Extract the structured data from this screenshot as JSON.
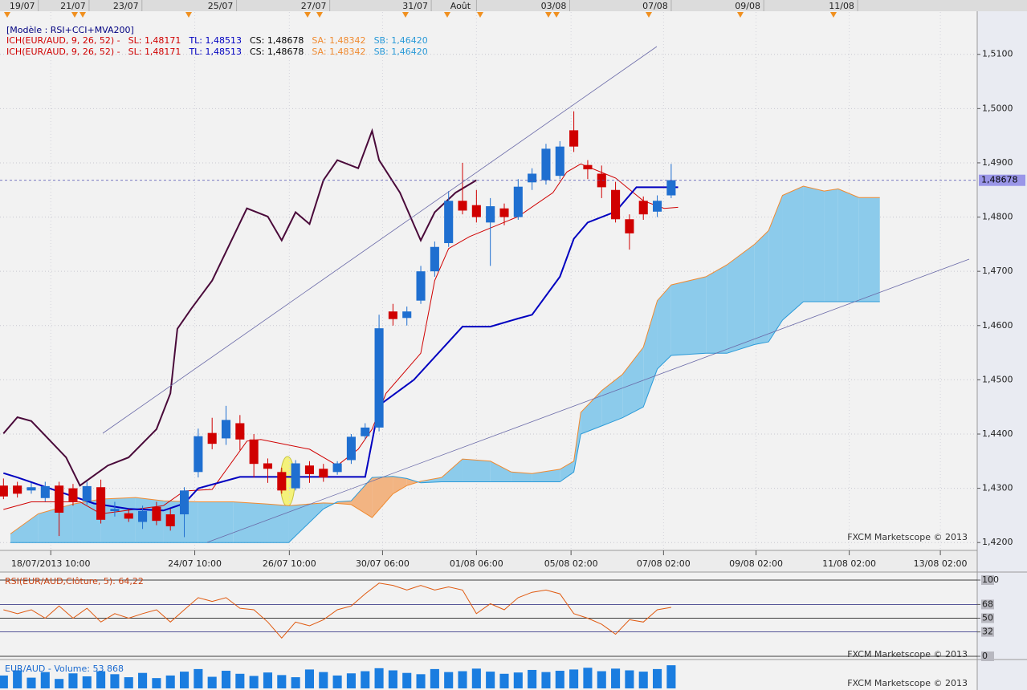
{
  "chart_data": [
    {
      "type": "candlestick",
      "legend": {
        "title": "[Modèle : RSI+CCI+MVA200]",
        "items": [
          {
            "label": "ICH(EUR/AUD, 9, 26, 52) -",
            "color": "#d00000"
          },
          {
            "label": "SL: 1,48171",
            "color": "#d00000"
          },
          {
            "label": "TL: 1,48513",
            "color": "#0000c0"
          },
          {
            "label": "CS: 1,48678",
            "color": "#000000"
          },
          {
            "label": "SA: 1,48342",
            "color": "#f08a30"
          },
          {
            "label": "SB: 1,46420",
            "color": "#2a9ad8"
          }
        ]
      },
      "watermark": "FXCM Marketscope © 2013",
      "xlim": [
        -0.5,
        140
      ],
      "ylim": [
        1.4187,
        1.5178
      ],
      "yticks": [
        {
          "value": 1.42,
          "label": "1,4200"
        },
        {
          "value": 1.43,
          "label": "1,4300"
        },
        {
          "value": 1.44,
          "label": "1,4400"
        },
        {
          "value": 1.45,
          "label": "1,4500"
        },
        {
          "value": 1.46,
          "label": "1,4600"
        },
        {
          "value": 1.47,
          "label": "1,4700"
        },
        {
          "value": 1.48,
          "label": "1,4800"
        },
        {
          "value": 1.49,
          "label": "1,4900"
        },
        {
          "value": 1.5,
          "label": "1,5000"
        },
        {
          "value": 1.51,
          "label": "1,5100"
        }
      ],
      "xticks": [
        {
          "value": 6.8,
          "label": "18/07/2013 10:00"
        },
        {
          "value": 27.5,
          "label": "24/07 10:00"
        },
        {
          "value": 41.1,
          "label": "26/07 10:00"
        },
        {
          "value": 54.5,
          "label": "30/07 06:00"
        },
        {
          "value": 68,
          "label": "01/08 06:00"
        },
        {
          "value": 81.6,
          "label": "05/08 02:00"
        },
        {
          "value": 94.9,
          "label": "07/08 02:00"
        },
        {
          "value": 108.2,
          "label": "09/08 02:00"
        },
        {
          "value": 121.6,
          "label": "11/08 02:00"
        },
        {
          "value": 134.7,
          "label": "13/08 02:00"
        }
      ],
      "xticks_top": [
        {
          "value": 2.7,
          "label": "19/07"
        },
        {
          "value": 10,
          "label": "21/07"
        },
        {
          "value": 17.6,
          "label": "23/07"
        },
        {
          "value": 31.2,
          "label": "25/07"
        },
        {
          "value": 44.6,
          "label": "27/07"
        },
        {
          "value": 59.2,
          "label": "31/07"
        },
        {
          "value": 65.7,
          "label": "Août"
        },
        {
          "value": 79.1,
          "label": "03/08"
        },
        {
          "value": 93.7,
          "label": "07/08"
        },
        {
          "value": 107,
          "label": "09/08"
        },
        {
          "value": 120.5,
          "label": "11/08"
        }
      ],
      "last_price": {
        "value": 1.48678,
        "label": "1,48678"
      },
      "up_color": "#1f6fd0",
      "down_color": "#d00000",
      "x": [
        0,
        2,
        4,
        6,
        8,
        10,
        12,
        14,
        16,
        18,
        20,
        22,
        24,
        26,
        28,
        30,
        32,
        34,
        36,
        38,
        40,
        42,
        44,
        46,
        48,
        50,
        52,
        54,
        56,
        58,
        60,
        62,
        64,
        66,
        68,
        70,
        72,
        74,
        76,
        78,
        80,
        82,
        84,
        86,
        88,
        90,
        92,
        94,
        96
      ],
      "open": [
        1.4305,
        1.4305,
        1.4296,
        1.4282,
        1.4305,
        1.43,
        1.4276,
        1.4302,
        1.4258,
        1.4254,
        1.4238,
        1.4266,
        1.4252,
        1.4252,
        1.433,
        1.4402,
        1.4392,
        1.442,
        1.439,
        1.4346,
        1.433,
        1.43,
        1.4342,
        1.4336,
        1.433,
        1.4352,
        1.4396,
        1.4412,
        1.4626,
        1.4614,
        1.4646,
        1.47,
        1.4752,
        1.483,
        1.4822,
        1.479,
        1.4816,
        1.48,
        1.4864,
        1.4868,
        1.4876,
        1.496,
        1.4896,
        1.488,
        1.485,
        1.4796,
        1.483,
        1.481,
        1.484
      ],
      "high": [
        1.4318,
        1.4312,
        1.431,
        1.4312,
        1.4312,
        1.4308,
        1.4312,
        1.4316,
        1.4275,
        1.4262,
        1.4268,
        1.4275,
        1.4262,
        1.4302,
        1.441,
        1.443,
        1.4452,
        1.4435,
        1.44,
        1.4355,
        1.4338,
        1.4352,
        1.435,
        1.4345,
        1.435,
        1.44,
        1.442,
        1.462,
        1.464,
        1.4635,
        1.471,
        1.4755,
        1.4848,
        1.49,
        1.485,
        1.4835,
        1.4825,
        1.487,
        1.489,
        1.4935,
        1.494,
        1.4995,
        1.4905,
        1.4895,
        1.4865,
        1.4805,
        1.4838,
        1.484,
        1.4898
      ],
      "low": [
        1.428,
        1.4283,
        1.429,
        1.4276,
        1.4212,
        1.4268,
        1.427,
        1.4235,
        1.4248,
        1.4238,
        1.4225,
        1.4232,
        1.4222,
        1.421,
        1.432,
        1.4372,
        1.438,
        1.437,
        1.432,
        1.431,
        1.429,
        1.4296,
        1.431,
        1.4312,
        1.4325,
        1.4345,
        1.439,
        1.4405,
        1.46,
        1.46,
        1.464,
        1.469,
        1.4745,
        1.4805,
        1.479,
        1.471,
        1.4785,
        1.4795,
        1.485,
        1.486,
        1.487,
        1.492,
        1.487,
        1.4835,
        1.479,
        1.474,
        1.4795,
        1.48,
        1.4835
      ],
      "close": [
        1.4285,
        1.429,
        1.4302,
        1.4304,
        1.4255,
        1.4276,
        1.4304,
        1.4242,
        1.4262,
        1.4244,
        1.4258,
        1.424,
        1.423,
        1.4296,
        1.4396,
        1.4382,
        1.4426,
        1.439,
        1.4345,
        1.4336,
        1.4296,
        1.4346,
        1.4326,
        1.432,
        1.4346,
        1.4395,
        1.4412,
        1.4595,
        1.4612,
        1.4626,
        1.47,
        1.4745,
        1.483,
        1.4812,
        1.48,
        1.482,
        1.48,
        1.4856,
        1.488,
        1.4926,
        1.493,
        1.493,
        1.4888,
        1.4855,
        1.4796,
        1.477,
        1.4805,
        1.483,
        1.4868
      ],
      "lines": [
        {
          "color": "#d00000",
          "x": [
            0,
            4,
            11,
            14,
            23,
            26,
            30,
            35,
            37,
            44,
            48,
            51,
            53,
            55,
            60,
            62,
            64,
            67,
            74,
            79,
            81,
            83,
            88,
            92,
            95,
            97
          ],
          "values": [
            1.4261,
            1.4275,
            1.4275,
            1.4253,
            1.4268,
            1.4295,
            1.4298,
            1.4387,
            1.439,
            1.4372,
            1.4342,
            1.4372,
            1.4409,
            1.4475,
            1.4549,
            1.4683,
            1.4742,
            1.4764,
            1.4801,
            1.4845,
            1.4883,
            1.4898,
            1.4872,
            1.483,
            1.4816,
            1.4818
          ]
        },
        {
          "color": "#0000c0",
          "x": [
            0,
            2,
            13,
            18,
            23,
            26,
            28,
            34,
            52,
            54,
            59,
            64,
            66,
            70,
            74,
            76,
            80,
            82,
            84,
            88,
            91,
            97
          ],
          "values": [
            1.4328,
            1.432,
            1.4272,
            1.4262,
            1.4259,
            1.4272,
            1.43,
            1.4321,
            1.4321,
            1.4453,
            1.45,
            1.457,
            1.4598,
            1.4598,
            1.4613,
            1.462,
            1.469,
            1.476,
            1.479,
            1.481,
            1.4855,
            1.4855
          ]
        },
        {
          "color": "#4a0a3a",
          "x": [
            0,
            2,
            4,
            9,
            11,
            15,
            18,
            22,
            24,
            25,
            27,
            30,
            35,
            38,
            40,
            42,
            44,
            46,
            48,
            51,
            53,
            54,
            57,
            59,
            60,
            62,
            65,
            68
          ],
          "values": [
            1.4401,
            1.4431,
            1.4424,
            1.4357,
            1.4305,
            1.4342,
            1.4357,
            1.4409,
            1.4475,
            1.4594,
            1.4631,
            1.4683,
            1.4816,
            1.4801,
            1.4757,
            1.4809,
            1.4787,
            1.4868,
            1.4905,
            1.489,
            1.4959,
            1.4905,
            1.4845,
            1.4786,
            1.4757,
            1.4809,
            1.4845,
            1.4868
          ]
        }
      ],
      "cloud": {
        "up_color": "#8ccbeb",
        "down_color": "#f2b482",
        "sa_color": "#f08a30",
        "sb_color": "#2a9ad8",
        "x": [
          1,
          5,
          10,
          14,
          19,
          23,
          28,
          33,
          38,
          41,
          46,
          48,
          50,
          53,
          56,
          58,
          60,
          63,
          66,
          70,
          73,
          76,
          80,
          82,
          83,
          86,
          89,
          92,
          94,
          96,
          101,
          104,
          108,
          110,
          112,
          115,
          118,
          120,
          123,
          126
        ],
        "sa": [
          1.4216,
          1.4253,
          1.4271,
          1.428,
          1.4283,
          1.4277,
          1.4275,
          1.4275,
          1.4271,
          1.4268,
          1.4273,
          1.4272,
          1.427,
          1.4246,
          1.429,
          1.4305,
          1.4313,
          1.432,
          1.4354,
          1.435,
          1.433,
          1.4327,
          1.4335,
          1.435,
          1.444,
          1.448,
          1.451,
          1.456,
          1.4646,
          1.4675,
          1.469,
          1.4712,
          1.475,
          1.4775,
          1.484,
          1.4857,
          1.4848,
          1.4852,
          1.4836,
          1.4836
        ],
        "sb": [
          1.42,
          1.42,
          1.42,
          1.42,
          1.42,
          1.42,
          1.42,
          1.42,
          1.42,
          1.42,
          1.4262,
          1.4275,
          1.4277,
          1.432,
          1.4322,
          1.4318,
          1.431,
          1.4312,
          1.4312,
          1.4312,
          1.4312,
          1.4312,
          1.4312,
          1.433,
          1.44,
          1.4415,
          1.443,
          1.445,
          1.452,
          1.4545,
          1.4549,
          1.4549,
          1.4565,
          1.457,
          1.461,
          1.4644,
          1.4644,
          1.4644,
          1.4644,
          1.4644
        ]
      }
    },
    {
      "type": "line",
      "title": "RSI(EUR/AUD,Clôture, 5): 64,22",
      "watermark": "FXCM Marketscope © 2013",
      "color": "#e05a10",
      "xlim": [
        -0.5,
        140
      ],
      "ylim": [
        0,
        100
      ],
      "yticks": [
        0,
        32,
        50,
        68,
        100
      ],
      "tick_colors": [
        "#000000",
        "#22227a",
        "#000000",
        "#22227a",
        "#000000"
      ],
      "x": [
        0,
        2,
        4,
        6,
        8,
        10,
        12,
        14,
        16,
        18,
        20,
        22,
        24,
        26,
        28,
        30,
        32,
        34,
        36,
        38,
        40,
        42,
        44,
        46,
        48,
        50,
        52,
        54,
        56,
        58,
        60,
        62,
        64,
        66,
        68,
        70,
        72,
        74,
        76,
        78,
        80,
        82,
        84,
        86,
        88,
        90,
        92,
        94,
        96
      ],
      "values": [
        61,
        56,
        61,
        50,
        66,
        50,
        63,
        45,
        56,
        50,
        56,
        61,
        45,
        61,
        77,
        72,
        77,
        63,
        61,
        45,
        24,
        45,
        40,
        48,
        61,
        66,
        82,
        96,
        93,
        87,
        93,
        87,
        91,
        87,
        56,
        69,
        61,
        77,
        84,
        87,
        82,
        56,
        50,
        42,
        29,
        48,
        45,
        61,
        64.22
      ]
    },
    {
      "type": "bar",
      "title": "EUR/AUD - Volume: 53 868",
      "watermark": "FXCM Marketscope © 2013",
      "color": "#1a7de0",
      "xlim": [
        -0.5,
        140
      ],
      "ylim": [
        0,
        56000
      ],
      "x": [
        0,
        2,
        4,
        6,
        8,
        10,
        12,
        14,
        16,
        18,
        20,
        22,
        24,
        26,
        28,
        30,
        32,
        34,
        36,
        38,
        40,
        42,
        44,
        46,
        48,
        50,
        52,
        54,
        56,
        58,
        60,
        62,
        64,
        66,
        68,
        70,
        72,
        74,
        76,
        78,
        80,
        82,
        84,
        86,
        88,
        90,
        92,
        94,
        96
      ],
      "values": [
        30000,
        42000,
        25000,
        38000,
        22000,
        35000,
        28000,
        40000,
        33000,
        26000,
        36000,
        24000,
        30000,
        39000,
        45000,
        27000,
        41000,
        34000,
        29000,
        37000,
        31000,
        26000,
        44000,
        38000,
        30000,
        35000,
        40000,
        47000,
        42000,
        36000,
        33000,
        45000,
        38000,
        40000,
        46000,
        39000,
        34000,
        37000,
        43000,
        38000,
        41000,
        44000,
        48000,
        40000,
        46000,
        42000,
        39000,
        45000,
        53868
      ]
    }
  ]
}
